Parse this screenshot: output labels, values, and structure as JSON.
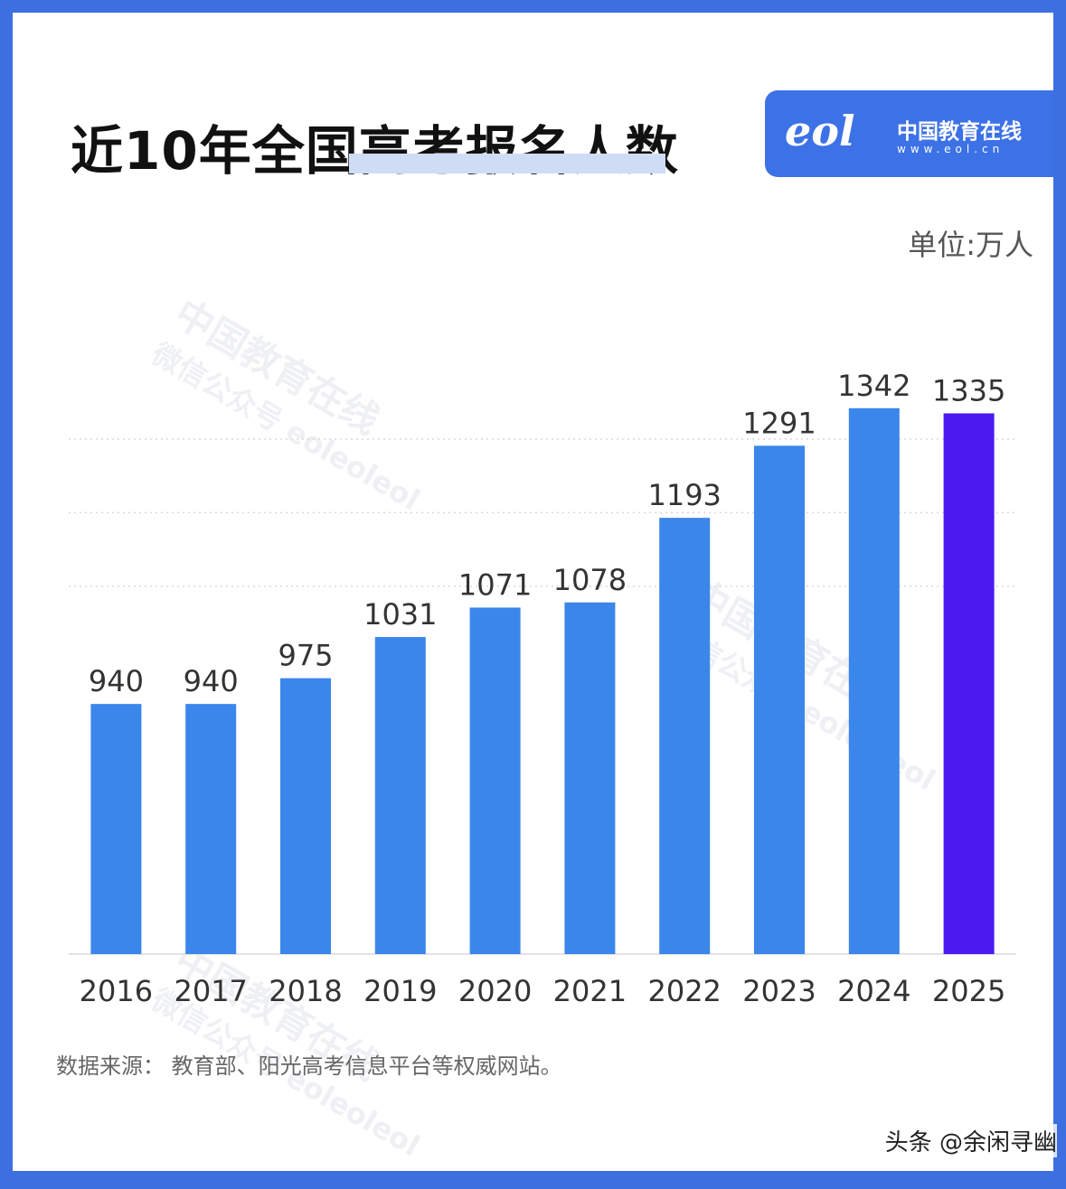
{
  "header": {
    "title": "近10年全国高考报名人数",
    "logo_mark": "eol",
    "logo_name": "中国教育在线",
    "logo_url": "www.eol.cn"
  },
  "unit_label": "单位:万人",
  "watermark": {
    "line1": "中国教育在线",
    "line2": "微信公众号 eoleoleol"
  },
  "source_text": "数据来源： 教育部、阳光高考信息平台等权威网站。",
  "attribution": "头条 @余闲寻幽",
  "colors": {
    "bar": "#3b86ea",
    "highlight_bar": "#4a1af0",
    "frame": "#3d6fe0",
    "logo_bg": "#3d72e6"
  },
  "chart_data": {
    "type": "bar",
    "title": "近10年全国高考报名人数",
    "ylabel": "单位:万人",
    "xlabel": "",
    "categories": [
      "2016",
      "2017",
      "2018",
      "2019",
      "2020",
      "2021",
      "2022",
      "2023",
      "2024",
      "2025"
    ],
    "values": [
      940,
      940,
      975,
      1031,
      1071,
      1078,
      1193,
      1291,
      1342,
      1335
    ],
    "value_labels": [
      "940",
      "940",
      "975",
      "1031",
      "1071",
      "1078",
      "1193",
      "1291",
      "1342",
      "1335"
    ],
    "highlight_index": 9,
    "ylim": [
      600,
      1420
    ],
    "grid": true
  }
}
